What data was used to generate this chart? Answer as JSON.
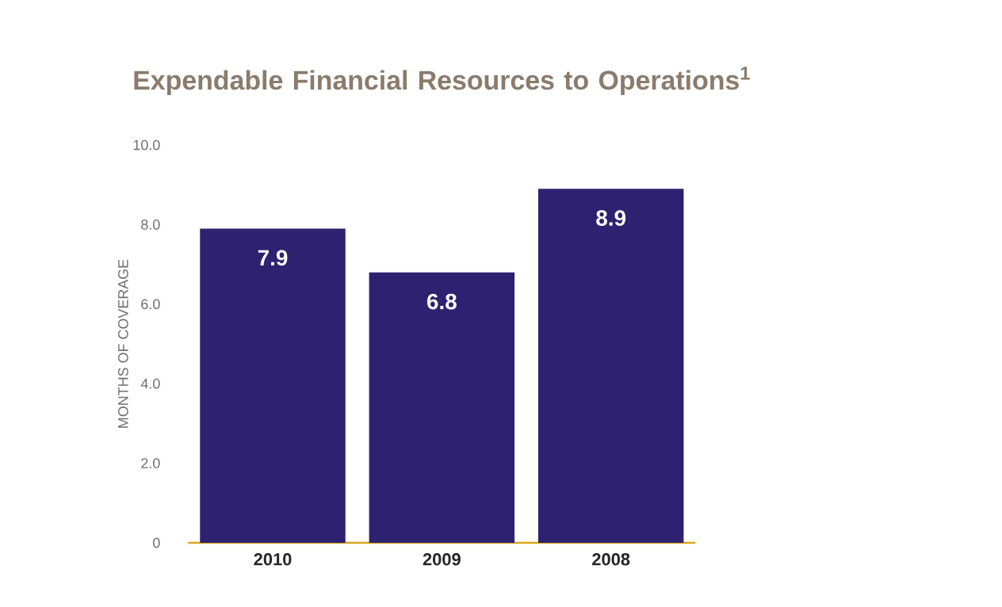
{
  "chart_data": {
    "type": "bar",
    "title": "Expendable Financial Resources to Operations$^{1}$",
    "ylabel": "MONTHS OF COVERAGE",
    "categories": [
      "2010",
      "2009",
      "2008"
    ],
    "values": [
      7.9,
      6.8,
      8.9
    ],
    "value_labels": [
      "7.9",
      "6.8",
      "8.9"
    ],
    "color": "#2e2170",
    "ylim": [
      0,
      10
    ],
    "yticks": [
      0,
      {
        "value": 2,
        "label": "2.0"
      },
      {
        "value": 4,
        "label": "4.0"
      },
      {
        "value": 6,
        "label": "6.0"
      },
      {
        "value": 8,
        "label": "8.0"
      },
      {
        "value": 10,
        "label": "10.0"
      }
    ],
    "grid": false
  }
}
